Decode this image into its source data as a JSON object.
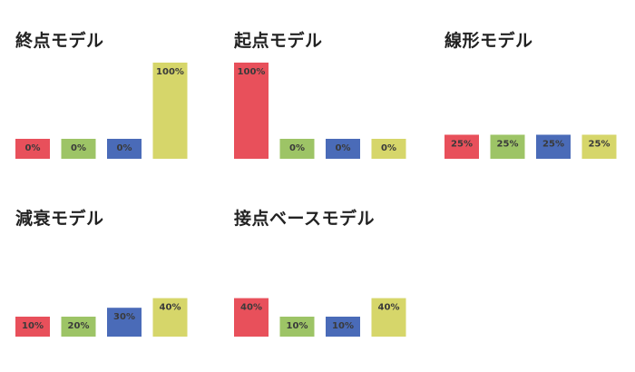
{
  "chart_data": [
    {
      "type": "bar",
      "title": "終点モデル",
      "values": [
        0,
        0,
        0,
        100
      ],
      "labels": [
        "0%",
        "0%",
        "0%",
        "100%"
      ],
      "colors": [
        "#e8505b",
        "#9dc466",
        "#4a6bb8",
        "#d6d66a"
      ],
      "ylim": [
        0,
        100
      ]
    },
    {
      "type": "bar",
      "title": "起点モデル",
      "values": [
        100,
        0,
        0,
        0
      ],
      "labels": [
        "100%",
        "0%",
        "0%",
        "0%"
      ],
      "colors": [
        "#e8505b",
        "#9dc466",
        "#4a6bb8",
        "#d6d66a"
      ],
      "ylim": [
        0,
        100
      ]
    },
    {
      "type": "bar",
      "title": "線形モデル",
      "values": [
        25,
        25,
        25,
        25
      ],
      "labels": [
        "25%",
        "25%",
        "25%",
        "25%"
      ],
      "colors": [
        "#e8505b",
        "#9dc466",
        "#4a6bb8",
        "#d6d66a"
      ],
      "ylim": [
        0,
        100
      ]
    },
    {
      "type": "bar",
      "title": "減衰モデル",
      "values": [
        10,
        20,
        30,
        40
      ],
      "labels": [
        "10%",
        "20%",
        "30%",
        "40%"
      ],
      "colors": [
        "#e8505b",
        "#9dc466",
        "#4a6bb8",
        "#d6d66a"
      ],
      "ylim": [
        0,
        100
      ]
    },
    {
      "type": "bar",
      "title": "接点ベースモデル",
      "values": [
        40,
        10,
        10,
        40
      ],
      "labels": [
        "40%",
        "10%",
        "10%",
        "40%"
      ],
      "colors": [
        "#e8505b",
        "#9dc466",
        "#4a6bb8",
        "#d6d66a"
      ],
      "ylim": [
        0,
        100
      ]
    }
  ]
}
